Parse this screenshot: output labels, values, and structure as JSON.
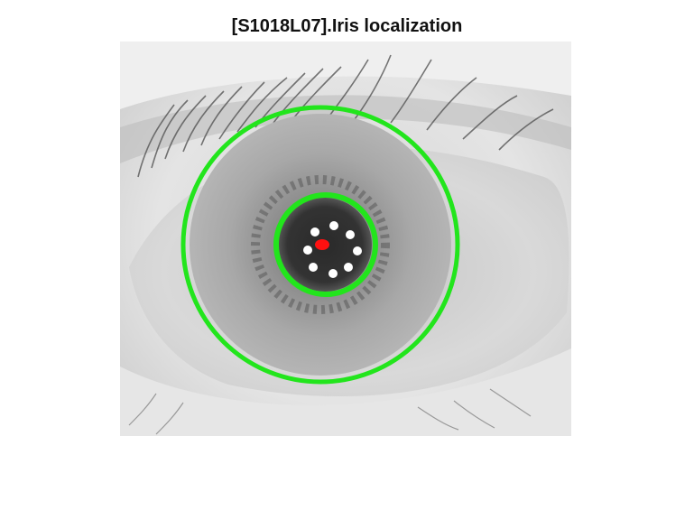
{
  "figure": {
    "title": "[S1018L07].Iris localization",
    "overlay_color": "#22e51c",
    "center_marker_color": "#ff1010",
    "glint_count": 8
  }
}
